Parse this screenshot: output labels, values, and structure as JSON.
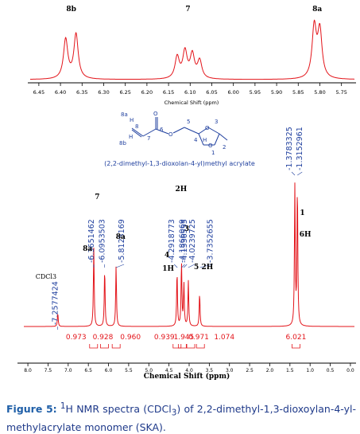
{
  "chart_data": [
    {
      "type": "line",
      "panel": "inset-expansion",
      "xlabel": "Chemical Shift (ppm)",
      "xlim": [
        6.47,
        5.72
      ],
      "x_ticks": [
        "6.45",
        "6.40",
        "6.35",
        "6.30",
        "6.25",
        "6.20",
        "6.15",
        "6.10",
        "6.05",
        "6.00",
        "5.95",
        "5.90",
        "5.85",
        "5.80",
        "5.75"
      ],
      "peaks": [
        {
          "ppm": 6.388,
          "height": 0.62
        },
        {
          "ppm": 6.364,
          "height": 0.7
        },
        {
          "ppm": 6.13,
          "height": 0.34
        },
        {
          "ppm": 6.112,
          "height": 0.42
        },
        {
          "ppm": 6.095,
          "height": 0.37
        },
        {
          "ppm": 6.078,
          "height": 0.28
        },
        {
          "ppm": 5.813,
          "height": 0.8
        },
        {
          "ppm": 5.8,
          "height": 0.74
        }
      ],
      "annotations": [
        {
          "text": "8b",
          "ppm": 6.375
        },
        {
          "text": "7",
          "ppm": 6.105
        },
        {
          "text": "8a",
          "ppm": 5.806
        }
      ]
    },
    {
      "type": "line",
      "panel": "full-spectrum",
      "xlabel": "Chemical Shift (ppm)",
      "xlim": [
        8.1,
        -0.1
      ],
      "x_ticks": [
        "8.0",
        "7.5",
        "7.0",
        "6.5",
        "6.0",
        "5.5",
        "5.0",
        "4.5",
        "4.0",
        "3.5",
        "3.0",
        "2.5",
        "2.0",
        "1.5",
        "1.0",
        "0.5",
        "0.0"
      ],
      "peaks": [
        {
          "ppm": 7.258,
          "height": 0.09
        },
        {
          "ppm": 6.365,
          "height": 0.52
        },
        {
          "ppm": 6.095,
          "height": 0.38
        },
        {
          "ppm": 5.812,
          "height": 0.4
        },
        {
          "ppm": 4.3,
          "height": 0.36
        },
        {
          "ppm": 4.19,
          "height": 0.42
        },
        {
          "ppm": 4.13,
          "height": 0.28
        },
        {
          "ppm": 4.02,
          "height": 0.3
        },
        {
          "ppm": 3.74,
          "height": 0.22
        },
        {
          "ppm": 1.378,
          "height": 0.92
        },
        {
          "ppm": 1.315,
          "height": 0.92
        }
      ],
      "peak_picks": [
        {
          "text": "7.2577424",
          "ppm": 7.258
        },
        {
          "text": "6.3651462",
          "ppm": 6.365
        },
        {
          "text": "6.0953503",
          "ppm": 6.095
        },
        {
          "text": "5.8123169",
          "ppm": 5.812
        },
        {
          "text": "4.2918773",
          "ppm": 4.292
        },
        {
          "text": "4.1866069",
          "ppm": 4.187
        },
        {
          "text": "4.1336555",
          "ppm": 4.134
        },
        {
          "text": "4.0239725",
          "ppm": 4.024
        },
        {
          "text": "3.7352655",
          "ppm": 3.735
        },
        {
          "text": "1.3783325",
          "ppm": 1.378
        },
        {
          "text": "1.3152961",
          "ppm": 1.315
        }
      ],
      "assignments": [
        {
          "text": "CDCl3",
          "ppm": 7.55
        },
        {
          "text": "7",
          "ppm": 6.28
        },
        {
          "text": "8a",
          "ppm": 6.52
        },
        {
          "text": "8a",
          "ppm": 5.7
        },
        {
          "text": "4",
          "ppm": 4.55
        },
        {
          "text": "1H",
          "ppm": 4.52
        },
        {
          "text": "2H",
          "ppm": 4.2
        },
        {
          "text": "3",
          "ppm": 4.06
        },
        {
          "text": "5",
          "ppm": 3.82
        },
        {
          "text": "2H",
          "ppm": 3.55
        },
        {
          "text": "1",
          "ppm": 1.19
        },
        {
          "text": "6H",
          "ppm": 1.12
        }
      ],
      "integrals": [
        {
          "text": "0.973",
          "ppm": 6.37
        },
        {
          "text": "0.928",
          "ppm": 6.1
        },
        {
          "text": "0.960",
          "ppm": 5.81
        },
        {
          "text": "0.939",
          "ppm": 4.3
        },
        {
          "text": "1.945",
          "ppm": 4.17
        },
        {
          "text": "0.971",
          "ppm": 3.96
        },
        {
          "text": "1.074",
          "ppm": 3.72
        },
        {
          "text": "6.021",
          "ppm": 1.35
        }
      ]
    }
  ],
  "structure": {
    "name": "(2,2-dimethyl-1,3-dioxolan-4-yl)methyl acrylate",
    "labels": [
      "8a",
      "8b",
      "H",
      "H",
      "8",
      "7",
      "6",
      "5",
      "4",
      "3",
      "2",
      "1",
      "H",
      "O",
      "O",
      "O",
      "O"
    ]
  },
  "caption": {
    "figure": "Figure 5:",
    "sup": "1",
    "text1": "H NMR spectra (CDCl",
    "sub": "3",
    "text2": ") of 2,2-dimethyl-1,3-dioxoylan-4-yl-methylacrylate monomer (SKA)."
  },
  "colors": {
    "spectrum": "#e3141a",
    "pick_labels": "#1f3f9e",
    "integrals": "#e3141a",
    "text": "#000000",
    "caption": "#1f3a8a"
  }
}
